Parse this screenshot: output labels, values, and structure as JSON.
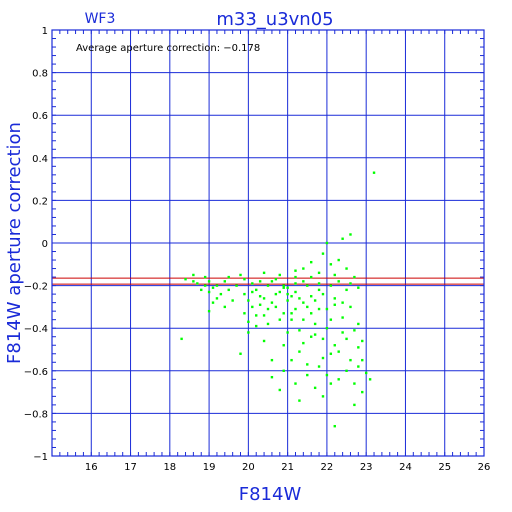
{
  "chart_data": {
    "type": "scatter",
    "title": "m33_u3vn05",
    "subtitle": "WF3",
    "annotation": "Average aperture correction: −0.178",
    "xlabel": "F814W",
    "ylabel": "F814W aperture correction",
    "xlim": [
      15,
      26
    ],
    "ylim": [
      -1,
      1
    ],
    "x_ticks": [
      "16",
      "17",
      "18",
      "19",
      "20",
      "21",
      "22",
      "23",
      "24",
      "25",
      "26"
    ],
    "y_ticks": [
      "−1",
      "−0.8",
      "−0.6",
      "−0.4",
      "−0.2",
      "0",
      "0.2",
      "0.4",
      "0.6",
      "0.8",
      "1"
    ],
    "grid": true,
    "mean_line": {
      "value": -0.178,
      "band": [
        -0.165,
        -0.193
      ]
    },
    "colors": {
      "axes": "#1a2bd8",
      "points": "#00ff00",
      "mean_line": "#cc0000"
    },
    "series": [
      {
        "points": [
          [
            18.4,
            -0.17
          ],
          [
            18.6,
            -0.15
          ],
          [
            18.7,
            -0.19
          ],
          [
            18.9,
            -0.16
          ],
          [
            19.0,
            -0.18
          ],
          [
            19.1,
            -0.21
          ],
          [
            19.2,
            -0.2
          ],
          [
            19.3,
            -0.24
          ],
          [
            19.0,
            -0.32
          ],
          [
            19.1,
            -0.28
          ],
          [
            18.3,
            -0.45
          ],
          [
            19.8,
            -0.52
          ],
          [
            19.9,
            -0.24
          ],
          [
            20.0,
            -0.27
          ],
          [
            20.1,
            -0.19
          ],
          [
            20.2,
            -0.22
          ],
          [
            20.3,
            -0.29
          ],
          [
            20.4,
            -0.26
          ],
          [
            20.5,
            -0.31
          ],
          [
            20.6,
            -0.18
          ],
          [
            20.7,
            -0.24
          ],
          [
            20.8,
            -0.36
          ],
          [
            20.9,
            -0.21
          ],
          [
            21.0,
            -0.27
          ],
          [
            21.1,
            -0.33
          ],
          [
            21.2,
            -0.19
          ],
          [
            21.3,
            -0.41
          ],
          [
            21.4,
            -0.28
          ],
          [
            21.5,
            -0.3
          ],
          [
            21.6,
            -0.25
          ],
          [
            21.7,
            -0.38
          ],
          [
            21.8,
            -0.22
          ],
          [
            21.9,
            -0.45
          ],
          [
            22.0,
            -0.31
          ],
          [
            22.1,
            -0.36
          ],
          [
            22.2,
            -0.29
          ],
          [
            22.3,
            -0.51
          ],
          [
            22.4,
            -0.42
          ],
          [
            22.5,
            -0.6
          ],
          [
            22.6,
            -0.55
          ],
          [
            22.7,
            -0.66
          ],
          [
            22.8,
            -0.58
          ],
          [
            22.9,
            -0.7
          ],
          [
            23.1,
            -0.64
          ],
          [
            23.2,
            0.33
          ],
          [
            22.0,
            0.0
          ],
          [
            22.4,
            0.02
          ],
          [
            22.6,
            0.04
          ],
          [
            21.9,
            -0.05
          ],
          [
            22.3,
            -0.08
          ],
          [
            22.5,
            -0.12
          ],
          [
            22.1,
            -0.1
          ],
          [
            21.8,
            -0.14
          ],
          [
            21.6,
            -0.09
          ],
          [
            21.4,
            -0.12
          ],
          [
            21.2,
            -0.16
          ],
          [
            21.0,
            -0.21
          ],
          [
            20.8,
            -0.23
          ],
          [
            20.6,
            -0.28
          ],
          [
            20.4,
            -0.34
          ],
          [
            20.2,
            -0.39
          ],
          [
            20.0,
            -0.42
          ],
          [
            20.9,
            -0.48
          ],
          [
            21.1,
            -0.55
          ],
          [
            21.3,
            -0.51
          ],
          [
            21.5,
            -0.62
          ],
          [
            21.7,
            -0.68
          ],
          [
            21.9,
            -0.72
          ],
          [
            22.1,
            -0.66
          ],
          [
            22.2,
            -0.86
          ],
          [
            22.7,
            -0.76
          ],
          [
            21.3,
            -0.74
          ],
          [
            20.6,
            -0.63
          ],
          [
            20.9,
            -0.6
          ],
          [
            21.4,
            -0.47
          ],
          [
            21.6,
            -0.44
          ],
          [
            21.8,
            -0.58
          ],
          [
            22.0,
            -0.62
          ],
          [
            22.2,
            -0.48
          ],
          [
            22.4,
            -0.35
          ],
          [
            22.6,
            -0.3
          ],
          [
            22.8,
            -0.38
          ],
          [
            22.9,
            -0.46
          ],
          [
            21.1,
            -0.25
          ],
          [
            21.2,
            -0.23
          ],
          [
            21.0,
            -0.24
          ],
          [
            21.3,
            -0.26
          ],
          [
            20.9,
            -0.2
          ],
          [
            20.7,
            -0.17
          ],
          [
            20.5,
            -0.2
          ],
          [
            20.3,
            -0.18
          ],
          [
            20.1,
            -0.23
          ],
          [
            19.9,
            -0.17
          ],
          [
            19.7,
            -0.2
          ],
          [
            19.5,
            -0.22
          ],
          [
            19.4,
            -0.18
          ],
          [
            21.5,
            -0.2
          ],
          [
            21.7,
            -0.27
          ],
          [
            21.9,
            -0.24
          ],
          [
            22.1,
            -0.2
          ],
          [
            22.3,
            -0.18
          ],
          [
            22.5,
            -0.22
          ],
          [
            22.7,
            -0.16
          ],
          [
            22.8,
            -0.21
          ],
          [
            21.6,
            -0.33
          ],
          [
            21.8,
            -0.31
          ],
          [
            22.0,
            -0.4
          ],
          [
            22.2,
            -0.26
          ],
          [
            22.4,
            -0.28
          ],
          [
            21.1,
            -0.36
          ],
          [
            21.2,
            -0.31
          ],
          [
            20.9,
            -0.33
          ],
          [
            20.7,
            -0.3
          ],
          [
            20.5,
            -0.38
          ],
          [
            20.3,
            -0.25
          ],
          [
            20.1,
            -0.3
          ],
          [
            19.9,
            -0.33
          ],
          [
            19.6,
            -0.27
          ],
          [
            19.4,
            -0.3
          ],
          [
            19.2,
            -0.26
          ],
          [
            19.0,
            -0.23
          ],
          [
            18.9,
            -0.2
          ],
          [
            18.8,
            -0.22
          ],
          [
            18.6,
            -0.18
          ],
          [
            19.5,
            -0.16
          ],
          [
            19.8,
            -0.15
          ],
          [
            20.4,
            -0.14
          ],
          [
            20.8,
            -0.15
          ],
          [
            21.2,
            -0.13
          ],
          [
            21.4,
            -0.18
          ],
          [
            21.6,
            -0.16
          ],
          [
            21.8,
            -0.19
          ],
          [
            22.2,
            -0.15
          ],
          [
            22.6,
            -0.19
          ],
          [
            22.9,
            -0.55
          ],
          [
            22.3,
            -0.64
          ],
          [
            21.9,
            -0.54
          ],
          [
            21.5,
            -0.57
          ],
          [
            21.2,
            -0.66
          ],
          [
            20.8,
            -0.69
          ],
          [
            20.6,
            -0.55
          ],
          [
            20.4,
            -0.46
          ],
          [
            20.2,
            -0.34
          ],
          [
            20.0,
            -0.37
          ],
          [
            21.0,
            -0.42
          ],
          [
            21.4,
            -0.36
          ],
          [
            21.7,
            -0.43
          ],
          [
            22.1,
            -0.52
          ],
          [
            22.5,
            -0.45
          ],
          [
            22.7,
            -0.41
          ],
          [
            22.8,
            -0.49
          ],
          [
            23.0,
            -0.61
          ]
        ]
      }
    ]
  }
}
